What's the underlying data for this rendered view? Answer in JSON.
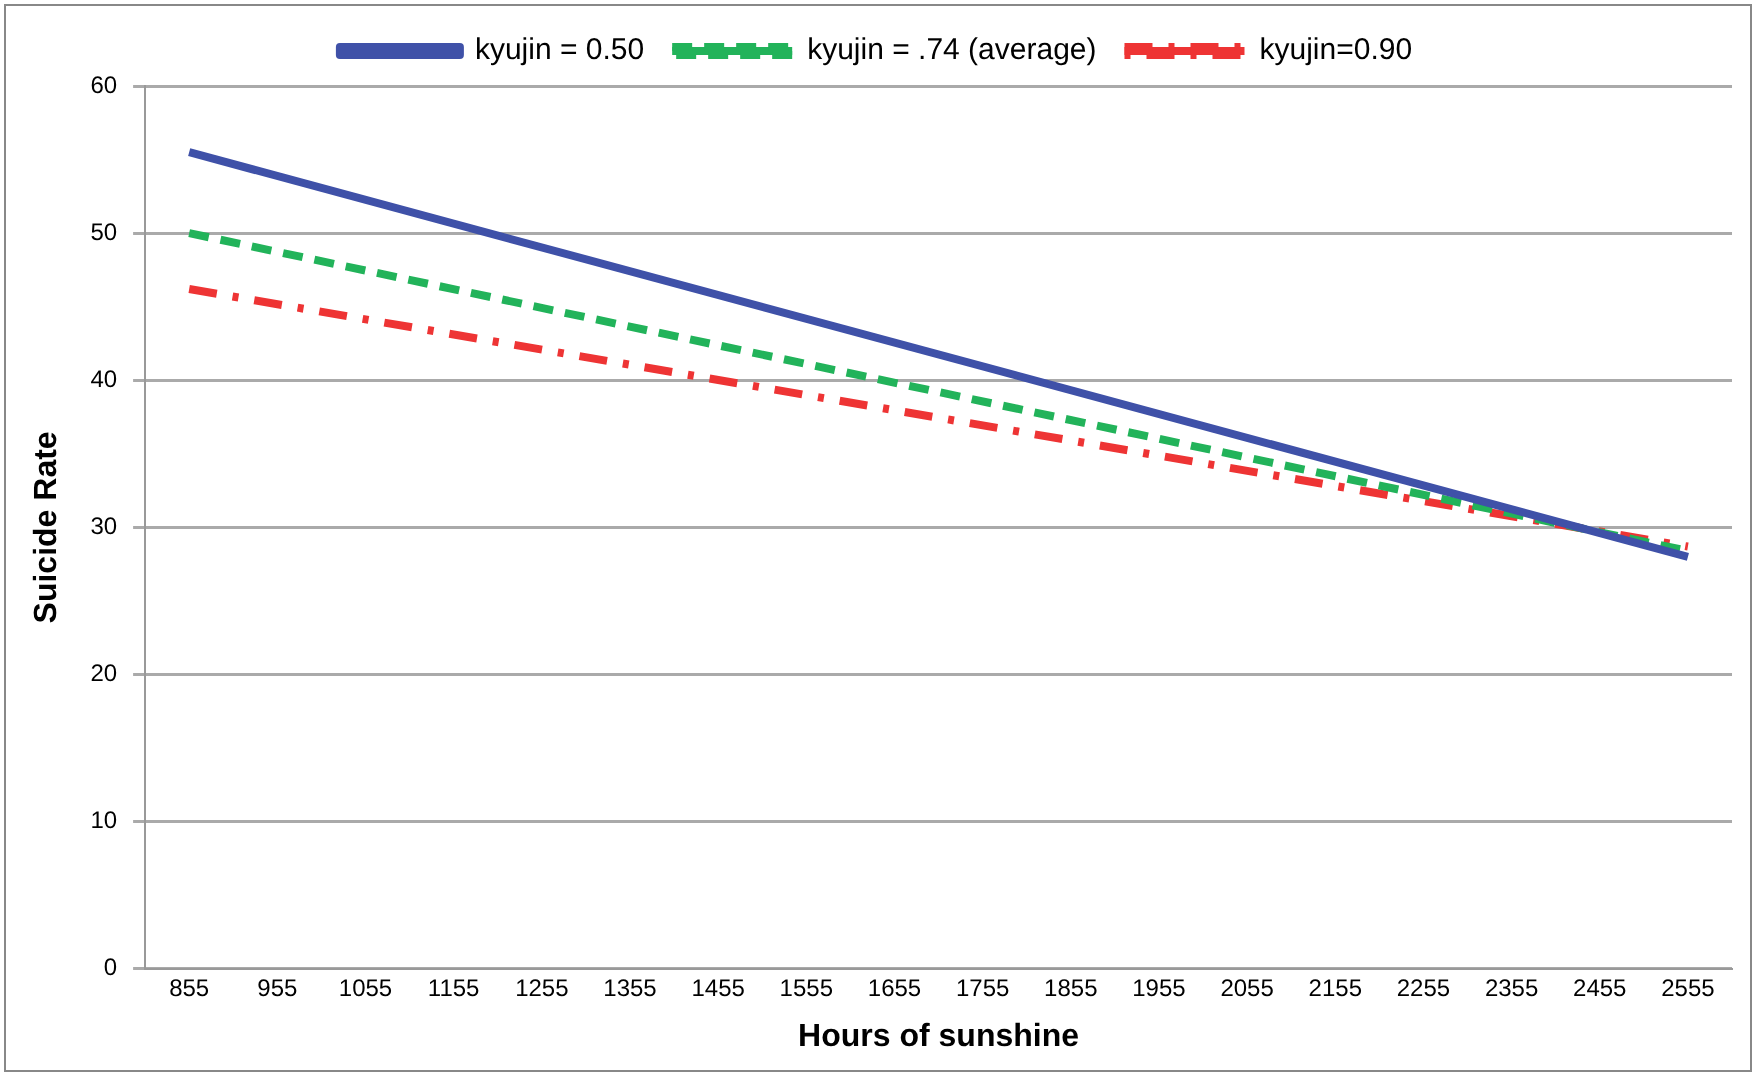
{
  "chart_data": {
    "type": "line",
    "xlabel": "Hours of sunshine",
    "ylabel": "Suicide Rate",
    "xlim": [
      805,
      2605
    ],
    "xticks": [
      855,
      955,
      1055,
      1155,
      1255,
      1355,
      1455,
      1555,
      1655,
      1755,
      1855,
      1955,
      2055,
      2155,
      2255,
      2355,
      2455,
      2555
    ],
    "x": [
      855,
      2555
    ],
    "ylim": [
      0,
      60
    ],
    "yticks": [
      0,
      10,
      20,
      30,
      40,
      50,
      60
    ],
    "grid": "y",
    "legend": "top",
    "marker": "none",
    "series": [
      {
        "name": "kyujin = 0.50",
        "color": "#3f51a8",
        "line_style": "solid",
        "values": [
          55.5,
          28.0
        ]
      },
      {
        "name": "kyujin = .74 (average)",
        "color": "#22b35a",
        "line_style": "dashed",
        "values": [
          50.0,
          28.4
        ]
      },
      {
        "name": "kyujin=0.90",
        "color": "#ee3434",
        "line_style": "dashdot",
        "values": [
          46.2,
          28.7
        ]
      }
    ]
  }
}
